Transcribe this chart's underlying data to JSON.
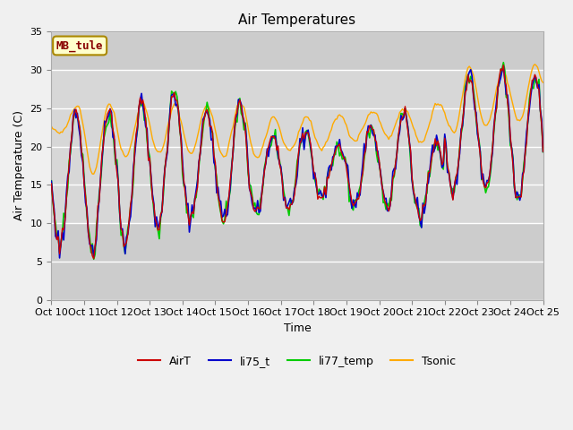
{
  "title": "Air Temperatures",
  "xlabel": "Time",
  "ylabel": "Air Temperature (C)",
  "ylim": [
    0,
    35
  ],
  "yticks": [
    0,
    5,
    10,
    15,
    20,
    25,
    30,
    35
  ],
  "x_labels": [
    "Oct 10",
    "Oct 11",
    "Oct 12",
    "Oct 13",
    "Oct 14",
    "Oct 15",
    "Oct 16",
    "Oct 17",
    "Oct 18",
    "Oct 19",
    "Oct 20",
    "Oct 21",
    "Oct 22",
    "Oct 23",
    "Oct 24",
    "Oct 25"
  ],
  "x_positions": [
    0,
    24,
    48,
    72,
    96,
    120,
    144,
    168,
    192,
    216,
    240,
    264,
    288,
    312,
    336,
    360
  ],
  "series_colors": {
    "AirT": "#cc0000",
    "li75_t": "#0000cc",
    "li77_temp": "#00cc00",
    "Tsonic": "#ffaa00"
  },
  "annotation_text": "MB_tule",
  "annotation_box_color": "#ffffcc",
  "annotation_border_color": "#aa8800",
  "annotation_text_color": "#880000",
  "plot_bg_color_top": "#e8e8e8",
  "plot_bg_color_bottom": "#d0d0d0",
  "grid_color": "#ffffff",
  "fig_bg_color": "#f0f0f0",
  "title_fontsize": 11,
  "label_fontsize": 9,
  "tick_fontsize": 8,
  "legend_fontsize": 9
}
